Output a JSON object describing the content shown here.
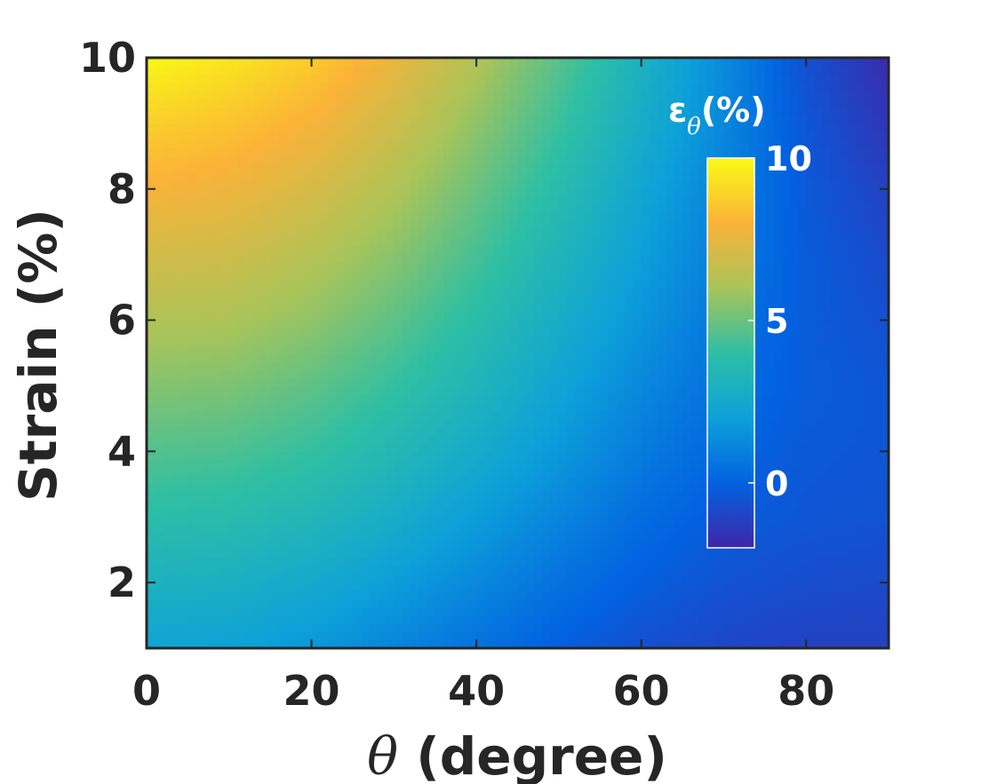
{
  "chart_data": {
    "type": "heatmap",
    "xlabel": {
      "symbol": "θ",
      "text": " (degree)"
    },
    "ylabel": "Strain (%)",
    "xlim": [
      0,
      90
    ],
    "ylim": [
      1,
      10
    ],
    "x_ticks": [
      "0",
      "20",
      "40",
      "60",
      "80"
    ],
    "y_ticks": [
      "2",
      "4",
      "6",
      "8",
      "10"
    ],
    "x": [
      0,
      10,
      20,
      30,
      40,
      50,
      60,
      70,
      80,
      90
    ],
    "y": [
      1,
      2,
      3,
      4,
      5,
      6,
      7,
      8,
      9,
      10
    ],
    "z": [
      [
        2.2,
        2.1,
        1.7,
        1.1,
        0.5,
        -0.1,
        -0.6,
        -0.9,
        -1.1,
        -1.1
      ],
      [
        3.0,
        2.9,
        2.5,
        1.9,
        1.2,
        0.5,
        -0.1,
        -0.5,
        -0.7,
        -0.8
      ],
      [
        3.8,
        3.7,
        3.3,
        2.7,
        1.9,
        1.1,
        0.3,
        -0.2,
        -0.4,
        -0.5
      ],
      [
        4.6,
        4.5,
        4.1,
        3.4,
        2.6,
        1.7,
        0.8,
        0.1,
        -0.3,
        -0.4
      ],
      [
        5.4,
        5.3,
        4.8,
        4.1,
        3.2,
        2.2,
        1.2,
        0.4,
        -0.2,
        -0.4
      ],
      [
        6.2,
        6.1,
        5.6,
        4.8,
        3.8,
        2.7,
        1.6,
        0.6,
        -0.2,
        -0.6
      ],
      [
        7.0,
        6.9,
        6.3,
        5.5,
        4.4,
        3.2,
        2.0,
        0.8,
        -0.2,
        -0.8
      ],
      [
        7.9,
        7.7,
        7.1,
        6.2,
        5.0,
        3.7,
        2.3,
        1.0,
        -0.3,
        -1.1
      ],
      [
        8.8,
        8.5,
        7.9,
        6.9,
        5.6,
        4.2,
        2.7,
        1.2,
        -0.4,
        -1.5
      ],
      [
        9.9,
        9.4,
        8.7,
        7.6,
        6.2,
        4.7,
        3.0,
        1.3,
        -0.6,
        -1.8
      ]
    ],
    "colorbar": {
      "title_main": "ε",
      "title_sub": "θ",
      "title_suffix": "(%)",
      "ticks": [
        {
          "label": "10",
          "value": 10
        },
        {
          "label": "5",
          "value": 5
        },
        {
          "label": "0",
          "value": 0
        }
      ],
      "range": [
        -2,
        10
      ],
      "placement": "inside upper-right",
      "colormap": [
        "#3e26a8",
        "#0262e0",
        "#0da1d9",
        "#2ebfa4",
        "#a9c459",
        "#fbb238",
        "#f9fb15"
      ]
    },
    "grid": false,
    "frame_color": "#262626"
  }
}
